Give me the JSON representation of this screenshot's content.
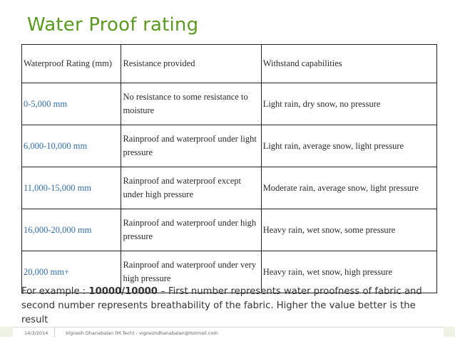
{
  "slide": {
    "title": "Water Proof rating"
  },
  "table": {
    "headers": [
      "Waterproof Rating (mm)",
      "Resistance provided",
      "Withstand capabilities"
    ],
    "rows": [
      {
        "rating": "0-5,000 mm",
        "resistance": "No resistance to some resistance to moisture",
        "withstand": "Light rain, dry snow, no pressure"
      },
      {
        "rating": "6,000-10,000 mm",
        "resistance": "Rainproof and waterproof under light pressure",
        "withstand": "Light rain, average snow, light pressure"
      },
      {
        "rating": "11,000-15,000 mm",
        "resistance": "Rainproof and waterproof except under high pressure",
        "withstand": "Moderate rain, average snow, light pressure"
      },
      {
        "rating": "16,000-20,000 mm",
        "resistance": "Rainproof and waterproof under high pressure",
        "withstand": "Heavy rain, wet snow, some pressure"
      },
      {
        "rating": "20,000 mm+",
        "resistance": "Rainproof and waterproof under very high pressure",
        "withstand": "Heavy rain, wet snow, high pressure"
      }
    ]
  },
  "example": {
    "prefix": "For example : ",
    "code": "10000/10000",
    "suffix": " – First number represents water proofness of fabric and second number represents breathability of the fabric. Higher the value better is the result"
  },
  "footer": {
    "date": "14/3/2014",
    "author": "Vignesh Dhanabalan (M.Tech) - vigneshdhanabalan@hotmail.com"
  },
  "colors": {
    "title": "#5a9a1e",
    "link": "#2e6fb0"
  }
}
